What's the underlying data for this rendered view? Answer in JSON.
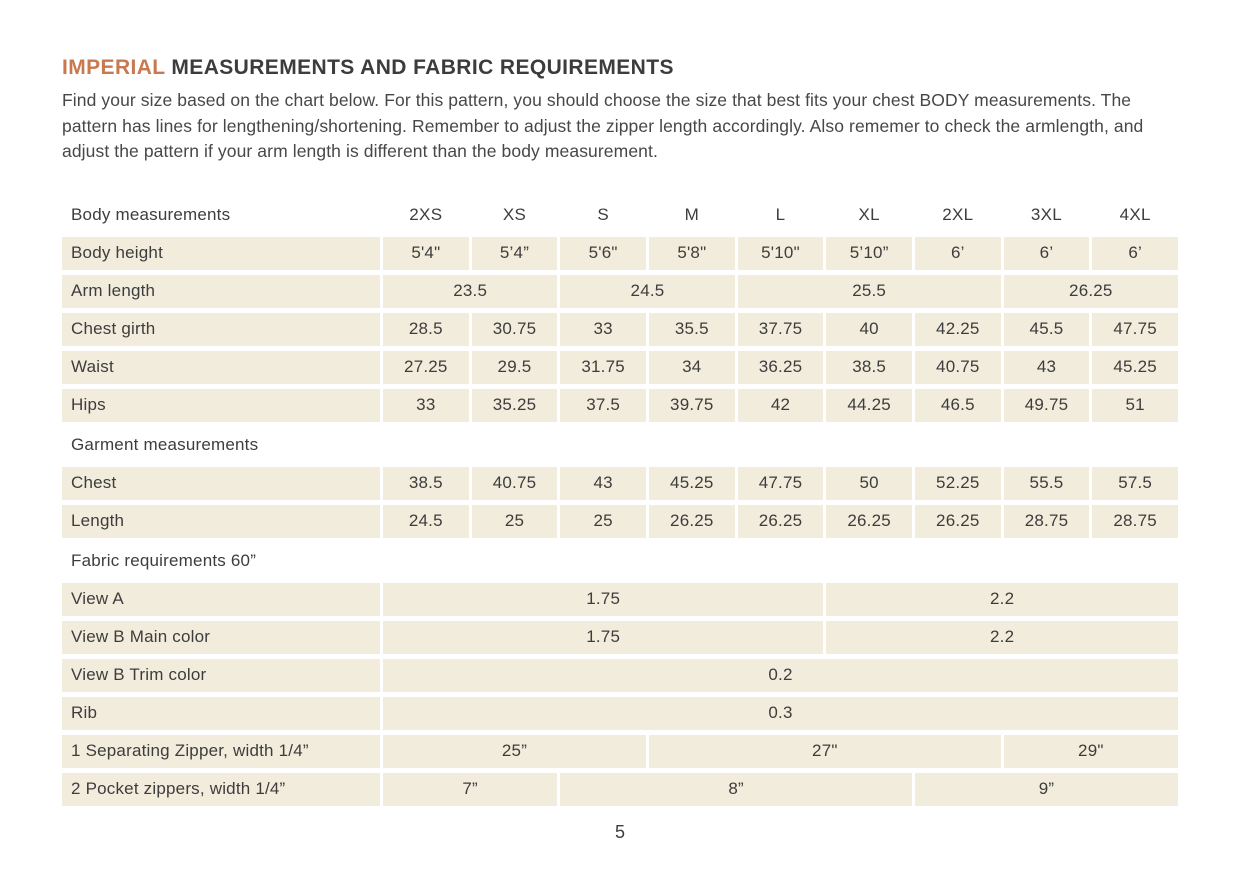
{
  "colors": {
    "accent": "#c8794f",
    "cell_bg": "#f2ecdc",
    "text": "#3d3d3d"
  },
  "header": {
    "title_highlight": "IMPERIAL",
    "title_rest": "MEASUREMENTS AND FABRIC REQUIREMENTS",
    "intro": "Find your size based on the chart below. For this pattern, you should choose the size that best fits your chest BODY measurements. The pattern has lines for lengthening/shortening. Remember to adjust the zipper length accordingly. Also rememer to check the armlength, and adjust the pattern if your arm length is different than the body measurement."
  },
  "footer": {
    "page_number": "5"
  },
  "table": {
    "sizes": [
      "2XS",
      "XS",
      "S",
      "M",
      "L",
      "XL",
      "2XL",
      "3XL",
      "4XL"
    ],
    "sections": [
      {
        "label": "Body measurements",
        "show_sizes": true,
        "rows": [
          {
            "label": "Body height",
            "cells": [
              {
                "span": 1,
                "text": "5'4\""
              },
              {
                "span": 1,
                "text": "5’4”"
              },
              {
                "span": 1,
                "text": "5'6\""
              },
              {
                "span": 1,
                "text": "5'8\""
              },
              {
                "span": 1,
                "text": "5'10\""
              },
              {
                "span": 1,
                "text": "5’10”"
              },
              {
                "span": 1,
                "text": "6’"
              },
              {
                "span": 1,
                "text": "6’"
              },
              {
                "span": 1,
                "text": "6’"
              }
            ]
          },
          {
            "label": "Arm length",
            "cells": [
              {
                "span": 2,
                "text": "23.5"
              },
              {
                "span": 2,
                "text": "24.5"
              },
              {
                "span": 3,
                "text": "25.5"
              },
              {
                "span": 2,
                "text": "26.25"
              }
            ]
          },
          {
            "label": "Chest girth",
            "cells": [
              {
                "span": 1,
                "text": "28.5"
              },
              {
                "span": 1,
                "text": "30.75"
              },
              {
                "span": 1,
                "text": "33"
              },
              {
                "span": 1,
                "text": "35.5"
              },
              {
                "span": 1,
                "text": "37.75"
              },
              {
                "span": 1,
                "text": "40"
              },
              {
                "span": 1,
                "text": "42.25"
              },
              {
                "span": 1,
                "text": "45.5"
              },
              {
                "span": 1,
                "text": "47.75"
              }
            ]
          },
          {
            "label": "Waist",
            "cells": [
              {
                "span": 1,
                "text": "27.25"
              },
              {
                "span": 1,
                "text": "29.5"
              },
              {
                "span": 1,
                "text": "31.75"
              },
              {
                "span": 1,
                "text": "34"
              },
              {
                "span": 1,
                "text": "36.25"
              },
              {
                "span": 1,
                "text": "38.5"
              },
              {
                "span": 1,
                "text": "40.75"
              },
              {
                "span": 1,
                "text": "43"
              },
              {
                "span": 1,
                "text": "45.25"
              }
            ]
          },
          {
            "label": "Hips",
            "cells": [
              {
                "span": 1,
                "text": "33"
              },
              {
                "span": 1,
                "text": "35.25"
              },
              {
                "span": 1,
                "text": "37.5"
              },
              {
                "span": 1,
                "text": "39.75"
              },
              {
                "span": 1,
                "text": "42"
              },
              {
                "span": 1,
                "text": "44.25"
              },
              {
                "span": 1,
                "text": "46.5"
              },
              {
                "span": 1,
                "text": "49.75"
              },
              {
                "span": 1,
                "text": "51"
              }
            ]
          }
        ]
      },
      {
        "label": "Garment measurements",
        "show_sizes": false,
        "rows": [
          {
            "label": "Chest",
            "cells": [
              {
                "span": 1,
                "text": "38.5"
              },
              {
                "span": 1,
                "text": "40.75"
              },
              {
                "span": 1,
                "text": "43"
              },
              {
                "span": 1,
                "text": "45.25"
              },
              {
                "span": 1,
                "text": "47.75"
              },
              {
                "span": 1,
                "text": "50"
              },
              {
                "span": 1,
                "text": "52.25"
              },
              {
                "span": 1,
                "text": "55.5"
              },
              {
                "span": 1,
                "text": "57.5"
              }
            ]
          },
          {
            "label": "Length",
            "cells": [
              {
                "span": 1,
                "text": "24.5"
              },
              {
                "span": 1,
                "text": "25"
              },
              {
                "span": 1,
                "text": "25"
              },
              {
                "span": 1,
                "text": "26.25"
              },
              {
                "span": 1,
                "text": "26.25"
              },
              {
                "span": 1,
                "text": "26.25"
              },
              {
                "span": 1,
                "text": "26.25"
              },
              {
                "span": 1,
                "text": "28.75"
              },
              {
                "span": 1,
                "text": "28.75"
              }
            ]
          }
        ]
      },
      {
        "label": "Fabric requirements 60”",
        "show_sizes": false,
        "rows": [
          {
            "label": "View A",
            "cells": [
              {
                "span": 5,
                "text": "1.75"
              },
              {
                "span": 4,
                "text": "2.2"
              }
            ]
          },
          {
            "label": "View B Main color",
            "cells": [
              {
                "span": 5,
                "text": "1.75"
              },
              {
                "span": 4,
                "text": "2.2"
              }
            ]
          },
          {
            "label": "View B Trim color",
            "cells": [
              {
                "span": 9,
                "text": "0.2"
              }
            ]
          },
          {
            "label": "Rib",
            "cells": [
              {
                "span": 9,
                "text": "0.3"
              }
            ]
          },
          {
            "label": "1 Separating Zipper, width 1/4”",
            "cells": [
              {
                "span": 3,
                "text": "25”"
              },
              {
                "span": 4,
                "text": "27\""
              },
              {
                "span": 2,
                "text": "29\""
              }
            ]
          },
          {
            "label": "2 Pocket zippers, width 1/4”",
            "cells": [
              {
                "span": 2,
                "text": "7”"
              },
              {
                "span": 4,
                "text": "8”"
              },
              {
                "span": 3,
                "text": "9”"
              }
            ]
          }
        ]
      }
    ]
  }
}
